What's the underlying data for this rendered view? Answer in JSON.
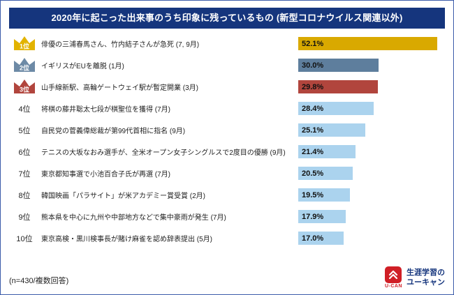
{
  "title": "2020年に起こった出来事のうち印象に残っているもの (新型コロナウイルス関連以外)",
  "colors": {
    "header_bg": "#15357d",
    "border": "#3b5ba9",
    "rank1_bar": "#d9a900",
    "rank2_bar": "#5e7e9d",
    "rank3_bar": "#b1453d",
    "bar_default": "#abd3ee",
    "logo_red": "#d01f26",
    "logo_navy": "#15357d"
  },
  "chart_data": {
    "type": "bar",
    "orientation": "horizontal",
    "title": "2020年に起こった出来事のうち印象に残っているもの (新型コロナウイルス関連以外)",
    "xlabel": "",
    "ylabel": "",
    "xlim": [
      0,
      55
    ],
    "grid": false,
    "legend": "none",
    "value_suffix": "%",
    "items": [
      {
        "rank": "1位",
        "icon": "crown-icon",
        "label": "俳優の三浦春馬さん、竹内結子さんが急死 (7, 9月)",
        "value": 52.1,
        "value_label": "52.1%",
        "color": "#d9a900",
        "crown_color": "#e2b300"
      },
      {
        "rank": "2位",
        "icon": "crown-icon",
        "label": "イギリスがEUを離脱 (1月)",
        "value": 30.0,
        "value_label": "30.0%",
        "color": "#5e7e9d",
        "crown_color": "#6d8aa6"
      },
      {
        "rank": "3位",
        "icon": "crown-icon",
        "label": "山手線新駅、高輪ゲートウェイ駅が暫定開業 (3月)",
        "value": 29.8,
        "value_label": "29.8%",
        "color": "#b1453d",
        "crown_color": "#b1453d"
      },
      {
        "rank": "4位",
        "label": "将棋の藤井聡太七段が棋聖位を獲得 (7月)",
        "value": 28.4,
        "value_label": "28.4%",
        "color": "#abd3ee"
      },
      {
        "rank": "5位",
        "label": "自民党の菅義偉総裁が第99代首相に指名 (9月)",
        "value": 25.1,
        "value_label": "25.1%",
        "color": "#abd3ee"
      },
      {
        "rank": "6位",
        "label": "テニスの大坂なおみ選手が、全米オープン女子シングルスで2度目の優勝 (9月)",
        "value": 21.4,
        "value_label": "21.4%",
        "color": "#abd3ee"
      },
      {
        "rank": "7位",
        "label": "東京都知事選で小池百合子氏が再選 (7月)",
        "value": 20.5,
        "value_label": "20.5%",
        "color": "#abd3ee"
      },
      {
        "rank": "8位",
        "label": "韓国映画「パラサイト」が米アカデミー賞受賞 (2月)",
        "value": 19.5,
        "value_label": "19.5%",
        "color": "#abd3ee"
      },
      {
        "rank": "9位",
        "label": "熊本県を中心に九州や中部地方などで集中豪雨が発生 (7月)",
        "value": 17.9,
        "value_label": "17.9%",
        "color": "#abd3ee"
      },
      {
        "rank": "10位",
        "label": "東京高検・黒川検事長が賭け麻雀を認め辞表提出 (5月)",
        "value": 17.0,
        "value_label": "17.0%",
        "color": "#abd3ee"
      }
    ]
  },
  "footer": {
    "note": "(n=430/複数回答)",
    "logo": {
      "icon": "ucan-logo-icon",
      "brand": "U-CAN",
      "tagline_line1": "生涯学習の",
      "tagline_line2": "ユーキャン"
    }
  }
}
